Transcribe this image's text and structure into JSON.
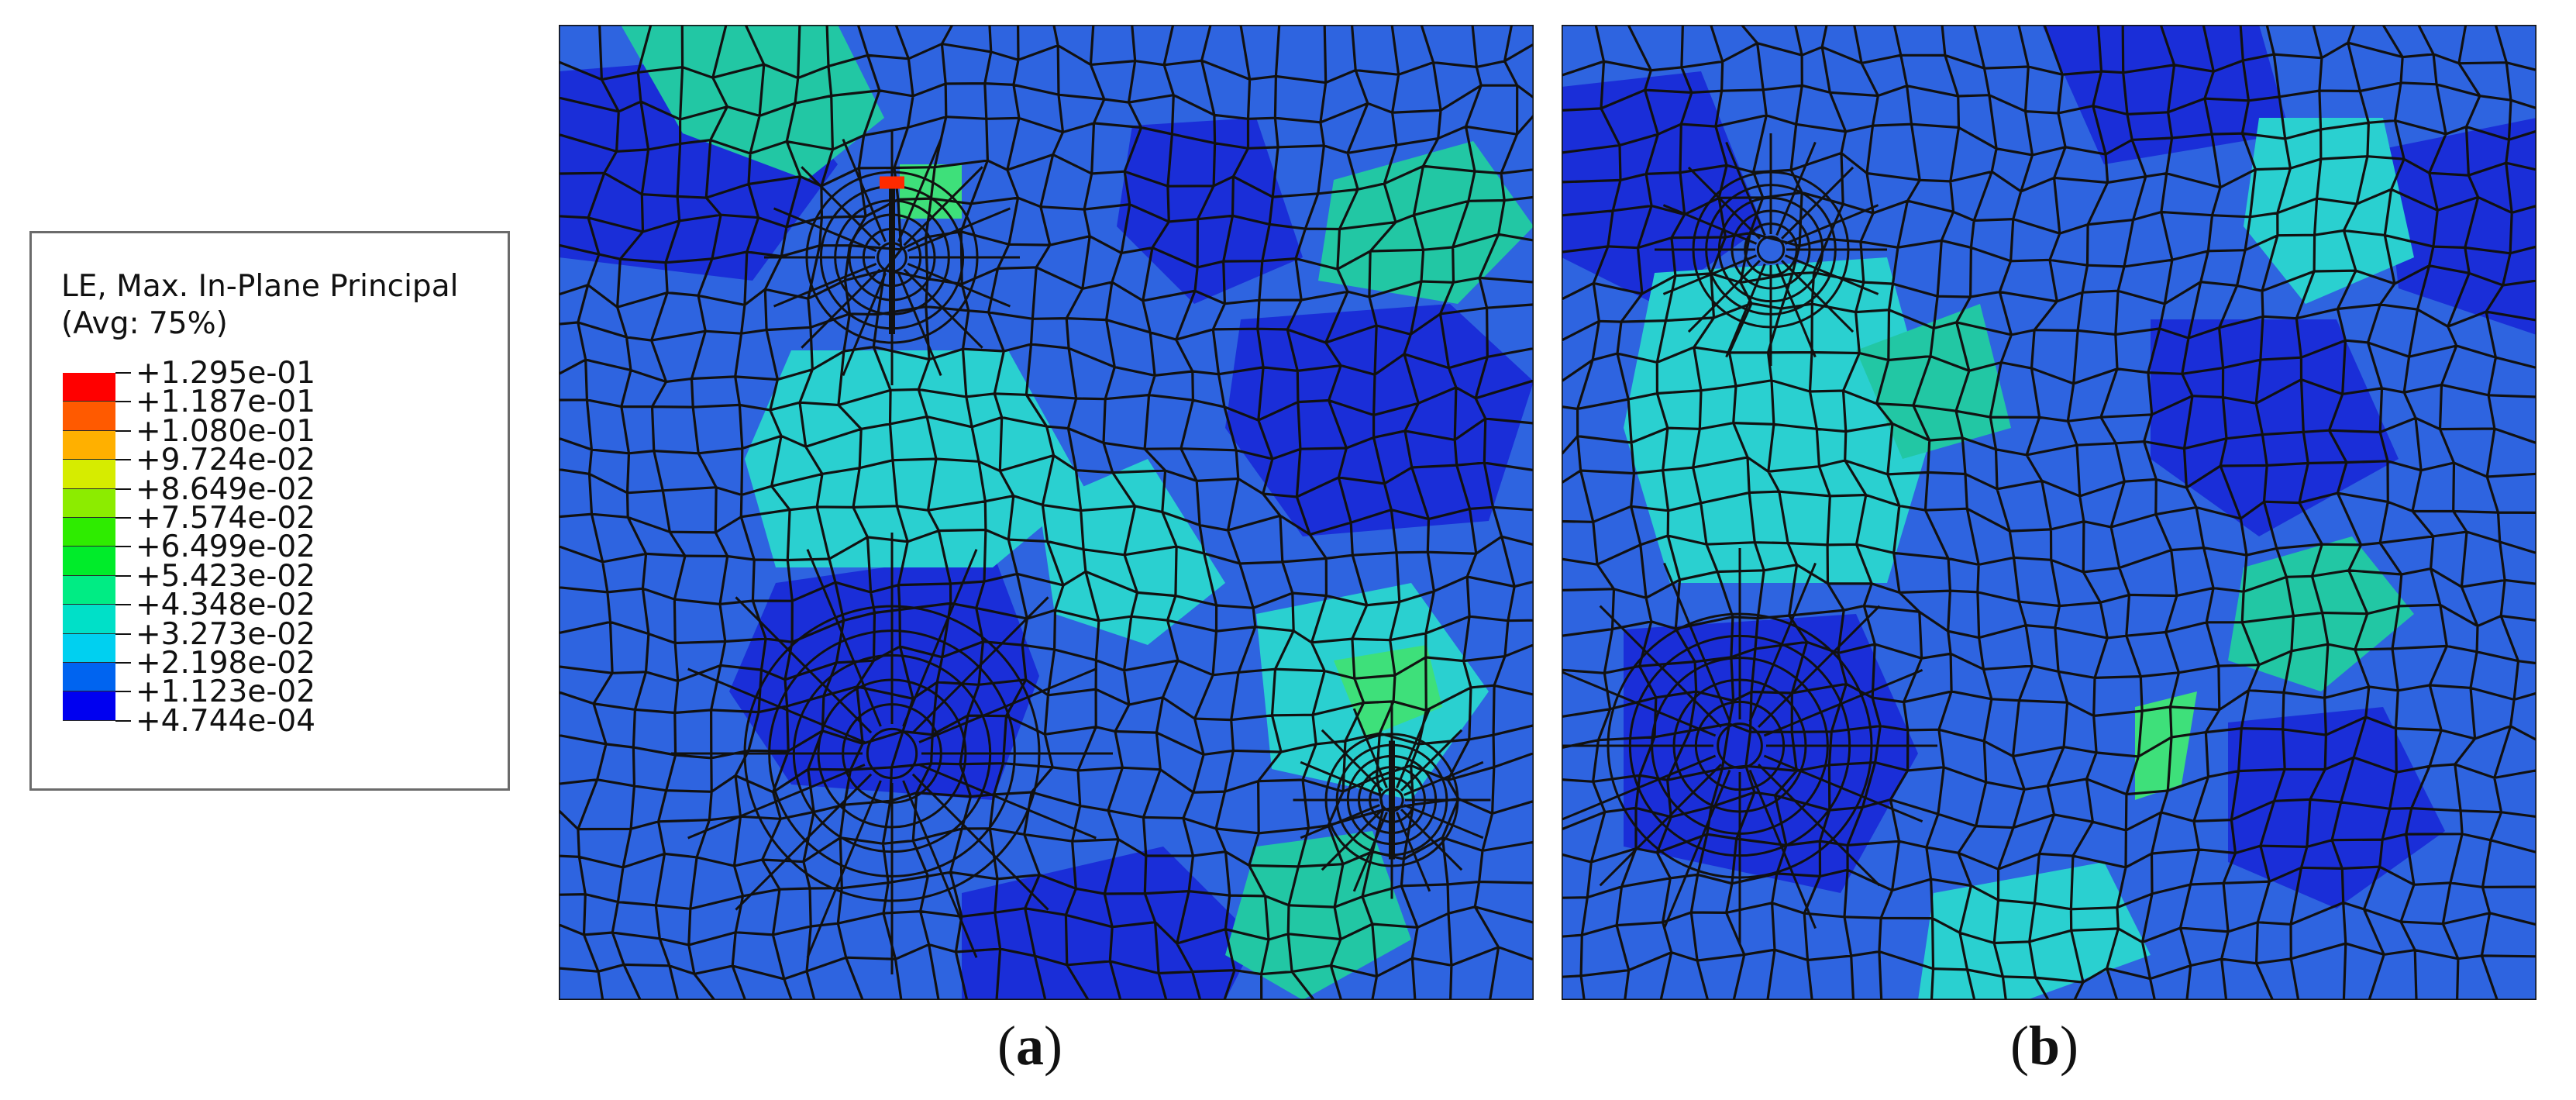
{
  "legend": {
    "title_line1": "LE, Max. In-Plane Principal",
    "title_line2": "(Avg: 75%)",
    "levels": [
      {
        "label": "+1.295e-01",
        "color": "#ff0000"
      },
      {
        "label": "+1.187e-01",
        "color": "#ff5a00"
      },
      {
        "label": "+1.080e-01",
        "color": "#ffb000"
      },
      {
        "label": "+9.724e-02",
        "color": "#d6ec00"
      },
      {
        "label": "+8.649e-02",
        "color": "#8cec00"
      },
      {
        "label": "+7.574e-02",
        "color": "#2eec00"
      },
      {
        "label": "+6.499e-02",
        "color": "#00ec2a"
      },
      {
        "label": "+5.423e-02",
        "color": "#00ec84"
      },
      {
        "label": "+4.348e-02",
        "color": "#00e0c8"
      },
      {
        "label": "+3.273e-02",
        "color": "#00d0f0"
      },
      {
        "label": "+2.198e-02",
        "color": "#00a6f4"
      },
      {
        "label": "+1.123e-02",
        "color": "#0064f0"
      },
      {
        "label": "+4.744e-04",
        "color": "#0000f0"
      }
    ]
  },
  "panels": {
    "a": {
      "caption": "a"
    },
    "b": {
      "caption": "b"
    }
  },
  "colors": {
    "mesh_line": "#111111",
    "base_blue": "#2e64e0",
    "deep_blue": "#1a2ed8",
    "cyan": "#2ad0d0",
    "teal": "#22c7a4",
    "green": "#3ee07a",
    "hot": "#ff2a00"
  }
}
